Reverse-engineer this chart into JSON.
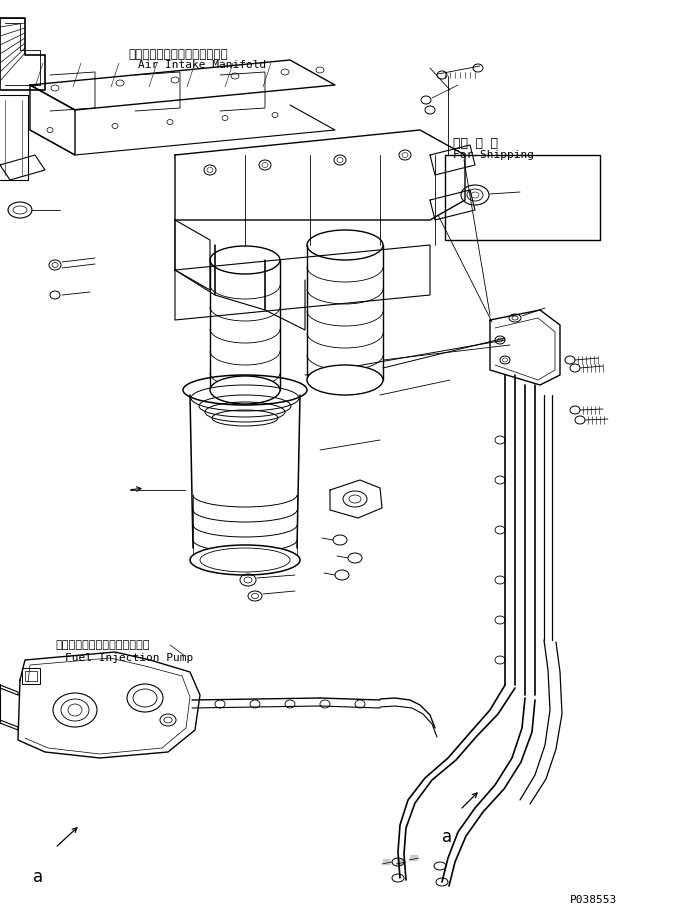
{
  "bg_color": "#ffffff",
  "line_color": "#000000",
  "fig_width": 6.79,
  "fig_height": 9.05,
  "dpi": 100,
  "label_air_intake_jp": "エアーインテークマニホールド",
  "label_air_intake_en": "Air Intake Manifold",
  "label_shipping_jp": "連携 部 品",
  "label_shipping_en": "For Shipping",
  "label_pump_jp": "フェルインジェクションポンプ",
  "label_pump_en": "Fuel Injection Pump",
  "label_a": "a",
  "part_number": "P038553",
  "font_size_jp": 9,
  "font_size_en": 8,
  "font_size_partno": 8
}
